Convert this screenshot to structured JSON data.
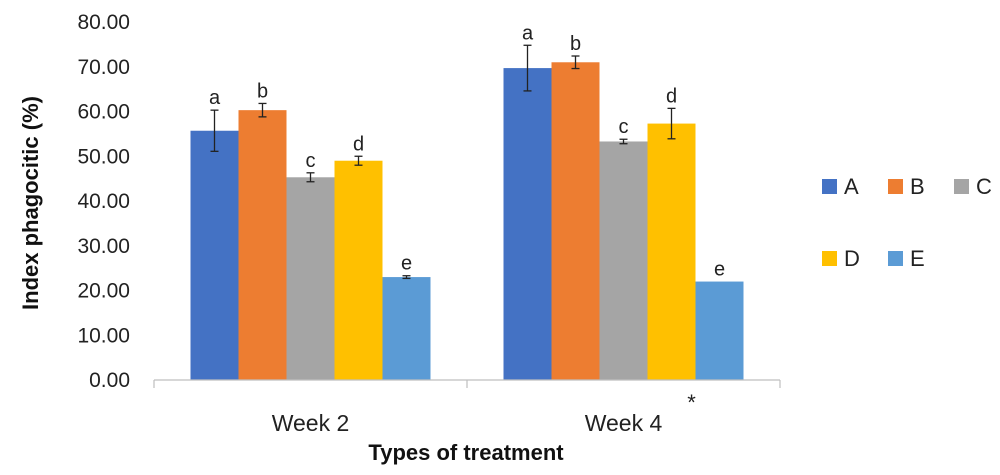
{
  "chart_data": {
    "type": "bar",
    "xlabel": "Types of treatment",
    "ylabel": "Index phagocitic (%)",
    "ylim": [
      0,
      80
    ],
    "yticks": [
      "0.00",
      "10.00",
      "20.00",
      "30.00",
      "40.00",
      "50.00",
      "60.00",
      "70.00",
      "80.00"
    ],
    "grid": false,
    "legend_position": "right",
    "categories": [
      "Week 2",
      "Week 4"
    ],
    "category_note": {
      "index": 1,
      "text": "*"
    },
    "series": [
      {
        "name": "A",
        "color": "#4472C4",
        "values": [
          55.7,
          69.7
        ],
        "errors": [
          4.6,
          5.1
        ],
        "labels": [
          "a",
          "a"
        ]
      },
      {
        "name": "B",
        "color": "#ED7D31",
        "values": [
          60.3,
          71.0
        ],
        "errors": [
          1.5,
          1.4
        ],
        "labels": [
          "b",
          "b"
        ]
      },
      {
        "name": "C",
        "color": "#A5A5A5",
        "values": [
          45.3,
          53.3
        ],
        "errors": [
          1.0,
          0.5
        ],
        "labels": [
          "c",
          "c"
        ]
      },
      {
        "name": "D",
        "color": "#FFC000",
        "values": [
          49.0,
          57.3
        ],
        "errors": [
          1.0,
          3.4
        ],
        "labels": [
          "d",
          "d"
        ]
      },
      {
        "name": "E",
        "color": "#5B9BD5",
        "values": [
          23.0,
          22.0
        ],
        "errors": [
          0.3,
          0.0
        ],
        "labels": [
          "e",
          "e"
        ]
      }
    ]
  }
}
